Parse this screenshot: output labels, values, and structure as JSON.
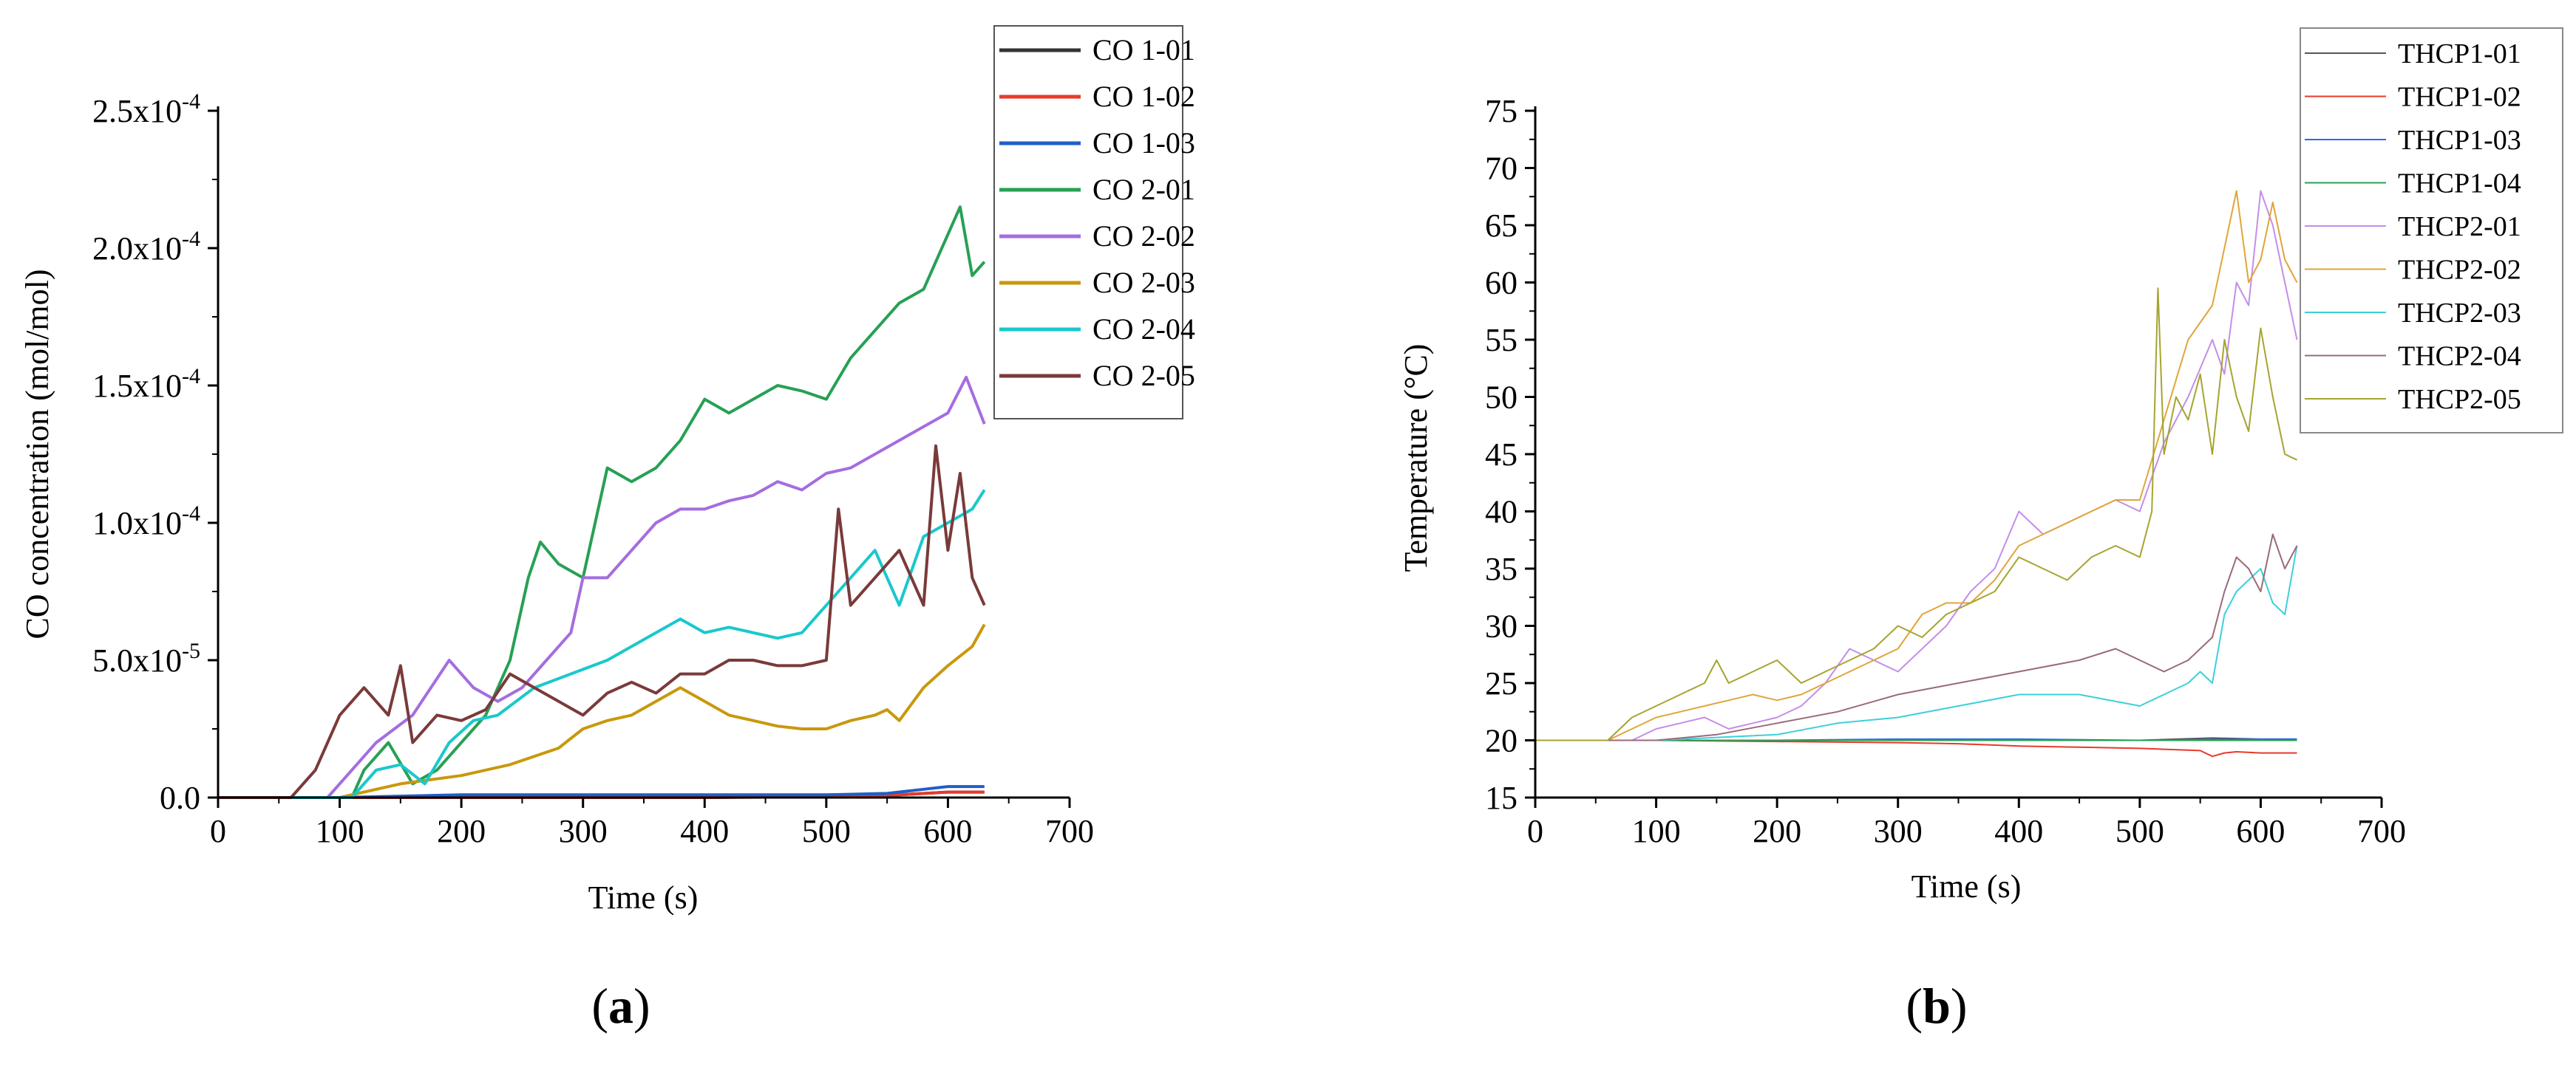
{
  "figure": {
    "panels": [
      {
        "label_open": "(",
        "label": "a",
        "label_close": ")"
      },
      {
        "label_open": "(",
        "label": "b",
        "label_close": ")"
      }
    ]
  },
  "chart_data": [
    {
      "type": "line",
      "title": "",
      "xlabel": "Time (s)",
      "ylabel": "CO concentration (mol/mol)",
      "xlim": [
        0,
        700
      ],
      "ylim": [
        0,
        0.00025
      ],
      "xticks": [
        0,
        100,
        200,
        300,
        400,
        500,
        600,
        700
      ],
      "xtick_labels": [
        "0",
        "100",
        "200",
        "300",
        "400",
        "500",
        "600",
        "700"
      ],
      "yticks": [
        0,
        5e-05,
        0.0001,
        0.00015,
        0.0002,
        0.00025
      ],
      "ytick_labels": [
        "0.0",
        "5.0x10",
        "1.0x10",
        "1.5x10",
        "2.0x10",
        "2.5x10"
      ],
      "ytick_exponents": [
        "",
        "-5",
        "-4",
        "-4",
        "-4",
        "-4"
      ],
      "grid": false,
      "legend_position": "top-right",
      "series": [
        {
          "name": "CO 1-01",
          "color": "#333333",
          "x": [
            0,
            100,
            200,
            300,
            400,
            500,
            560,
            600,
            630
          ],
          "y": [
            0,
            0,
            0,
            0,
            0,
            5e-07,
            1e-06,
            2e-06,
            2e-06
          ]
        },
        {
          "name": "CO 1-02",
          "color": "#e8392b",
          "x": [
            0,
            100,
            200,
            300,
            400,
            500,
            560,
            600,
            630
          ],
          "y": [
            0,
            0,
            0,
            0,
            0,
            3e-07,
            1e-06,
            2e-06,
            2e-06
          ]
        },
        {
          "name": "CO 1-03",
          "color": "#1f5fc7",
          "x": [
            0,
            100,
            150,
            200,
            300,
            400,
            500,
            550,
            580,
            600,
            630
          ],
          "y": [
            0,
            0,
            5e-07,
            1e-06,
            1e-06,
            1e-06,
            1e-06,
            1.5e-06,
            3e-06,
            4e-06,
            4e-06
          ]
        },
        {
          "name": "CO 2-01",
          "color": "#27a055",
          "x": [
            0,
            100,
            110,
            120,
            140,
            160,
            180,
            200,
            220,
            240,
            255,
            265,
            280,
            300,
            320,
            340,
            360,
            380,
            400,
            420,
            440,
            460,
            480,
            500,
            520,
            540,
            560,
            580,
            600,
            610,
            620,
            630
          ],
          "y": [
            0,
            0,
            0,
            1e-05,
            2e-05,
            5e-06,
            1e-05,
            2e-05,
            3e-05,
            5e-05,
            8e-05,
            9.3e-05,
            8.5e-05,
            8e-05,
            0.00012,
            0.000115,
            0.00012,
            0.00013,
            0.000145,
            0.00014,
            0.000145,
            0.00015,
            0.000148,
            0.000145,
            0.00016,
            0.00017,
            0.00018,
            0.000185,
            0.000205,
            0.000215,
            0.00019,
            0.000195
          ]
        },
        {
          "name": "CO 2-02",
          "color": "#a56de0",
          "x": [
            0,
            90,
            110,
            130,
            160,
            190,
            210,
            230,
            250,
            270,
            290,
            300,
            320,
            340,
            360,
            380,
            400,
            420,
            440,
            460,
            480,
            500,
            520,
            540,
            560,
            580,
            600,
            615,
            630
          ],
          "y": [
            0,
            0,
            1e-05,
            2e-05,
            3e-05,
            5e-05,
            4e-05,
            3.5e-05,
            4e-05,
            5e-05,
            6e-05,
            8e-05,
            8e-05,
            9e-05,
            0.0001,
            0.000105,
            0.000105,
            0.000108,
            0.00011,
            0.000115,
            0.000112,
            0.000118,
            0.00012,
            0.000125,
            0.00013,
            0.000135,
            0.00014,
            0.000153,
            0.000136
          ]
        },
        {
          "name": "CO 2-03",
          "color": "#c9980c",
          "x": [
            0,
            100,
            150,
            200,
            240,
            280,
            300,
            320,
            340,
            360,
            380,
            400,
            420,
            440,
            460,
            480,
            500,
            520,
            540,
            550,
            560,
            580,
            600,
            620,
            630
          ],
          "y": [
            0,
            0,
            5e-06,
            8e-06,
            1.2e-05,
            1.8e-05,
            2.5e-05,
            2.8e-05,
            3e-05,
            3.5e-05,
            4e-05,
            3.5e-05,
            3e-05,
            2.8e-05,
            2.6e-05,
            2.5e-05,
            2.5e-05,
            2.8e-05,
            3e-05,
            3.2e-05,
            2.8e-05,
            4e-05,
            4.8e-05,
            5.5e-05,
            6.3e-05
          ]
        },
        {
          "name": "CO 2-04",
          "color": "#19c8cc",
          "x": [
            0,
            110,
            130,
            150,
            170,
            190,
            210,
            230,
            260,
            290,
            320,
            340,
            360,
            380,
            400,
            420,
            440,
            460,
            480,
            500,
            520,
            540,
            560,
            580,
            600,
            620,
            630
          ],
          "y": [
            0,
            0,
            1e-05,
            1.2e-05,
            5e-06,
            2e-05,
            2.8e-05,
            3e-05,
            4e-05,
            4.5e-05,
            5e-05,
            5.5e-05,
            6e-05,
            6.5e-05,
            6e-05,
            6.2e-05,
            6e-05,
            5.8e-05,
            6e-05,
            7e-05,
            8e-05,
            9e-05,
            7e-05,
            9.5e-05,
            0.0001,
            0.000105,
            0.000112
          ]
        },
        {
          "name": "CO 2-05",
          "color": "#7a3a3a",
          "x": [
            0,
            60,
            80,
            100,
            120,
            140,
            150,
            160,
            180,
            200,
            220,
            240,
            260,
            280,
            300,
            320,
            340,
            360,
            380,
            400,
            420,
            440,
            460,
            480,
            500,
            510,
            520,
            540,
            560,
            580,
            590,
            600,
            610,
            620,
            630
          ],
          "y": [
            0,
            0,
            1e-05,
            3e-05,
            4e-05,
            3e-05,
            4.8e-05,
            2e-05,
            3e-05,
            2.8e-05,
            3.2e-05,
            4.5e-05,
            4e-05,
            3.5e-05,
            3e-05,
            3.8e-05,
            4.2e-05,
            3.8e-05,
            4.5e-05,
            4.5e-05,
            5e-05,
            5e-05,
            4.8e-05,
            4.8e-05,
            5e-05,
            0.000105,
            7e-05,
            8e-05,
            9e-05,
            7e-05,
            0.000128,
            9e-05,
            0.000118,
            8e-05,
            7e-05
          ]
        }
      ]
    },
    {
      "type": "line",
      "title": "",
      "xlabel": "Time (s)",
      "ylabel": "Temperature (°C)",
      "xlim": [
        0,
        700
      ],
      "ylim": [
        15,
        75
      ],
      "xticks": [
        0,
        100,
        200,
        300,
        400,
        500,
        600,
        700
      ],
      "xtick_labels": [
        "0",
        "100",
        "200",
        "300",
        "400",
        "500",
        "600",
        "700"
      ],
      "yticks": [
        15,
        20,
        25,
        30,
        35,
        40,
        45,
        50,
        55,
        60,
        65,
        70,
        75
      ],
      "ytick_labels": [
        "15",
        "20",
        "25",
        "30",
        "35",
        "40",
        "45",
        "50",
        "55",
        "60",
        "65",
        "70",
        "75"
      ],
      "grid": false,
      "legend_position": "top-right",
      "series": [
        {
          "name": "THCP1-01",
          "color": "#555555",
          "x": [
            0,
            100,
            200,
            300,
            400,
            500,
            560,
            600,
            630
          ],
          "y": [
            20,
            20,
            20,
            20,
            20,
            20,
            20.2,
            20.1,
            20.1
          ]
        },
        {
          "name": "THCP1-02",
          "color": "#e8392b",
          "x": [
            0,
            100,
            200,
            300,
            350,
            400,
            450,
            500,
            550,
            560,
            570,
            580,
            600,
            630
          ],
          "y": [
            20,
            20,
            19.9,
            19.8,
            19.7,
            19.5,
            19.4,
            19.3,
            19.1,
            18.6,
            18.9,
            19,
            18.9,
            18.9
          ]
        },
        {
          "name": "THCP1-03",
          "color": "#2d6be0",
          "x": [
            0,
            100,
            200,
            300,
            400,
            500,
            600,
            630
          ],
          "y": [
            20,
            20,
            20,
            20.1,
            20.1,
            20,
            20.1,
            20.1
          ]
        },
        {
          "name": "THCP1-04",
          "color": "#27a055",
          "x": [
            0,
            100,
            200,
            300,
            400,
            500,
            600,
            630
          ],
          "y": [
            20,
            20,
            20,
            20,
            20,
            20,
            20,
            20
          ]
        },
        {
          "name": "THCP2-01",
          "color": "#c48ee8",
          "x": [
            0,
            80,
            100,
            120,
            140,
            160,
            180,
            200,
            220,
            240,
            260,
            280,
            300,
            320,
            340,
            360,
            380,
            400,
            420,
            440,
            460,
            480,
            500,
            520,
            540,
            560,
            570,
            580,
            590,
            600,
            610,
            620,
            630
          ],
          "y": [
            20,
            20,
            21,
            21.5,
            22,
            21,
            21.5,
            22,
            23,
            25,
            28,
            27,
            26,
            28,
            30,
            33,
            35,
            40,
            38,
            39,
            40,
            41,
            40,
            46,
            50,
            55,
            52,
            60,
            58,
            68,
            65,
            60,
            55
          ]
        },
        {
          "name": "THCP2-02",
          "color": "#e0a53a",
          "x": [
            0,
            60,
            80,
            100,
            120,
            140,
            160,
            180,
            200,
            220,
            240,
            260,
            280,
            300,
            320,
            340,
            360,
            380,
            400,
            420,
            440,
            460,
            480,
            500,
            520,
            540,
            560,
            580,
            590,
            600,
            610,
            620,
            630
          ],
          "y": [
            20,
            20,
            21,
            22,
            22.5,
            23,
            23.5,
            24,
            23.5,
            24,
            25,
            26,
            27,
            28,
            31,
            32,
            32,
            34,
            37,
            38,
            39,
            40,
            41,
            41,
            48,
            55,
            58,
            68,
            60,
            62,
            67,
            62,
            60
          ]
        },
        {
          "name": "THCP2-03",
          "color": "#3cd0d8",
          "x": [
            0,
            100,
            200,
            250,
            300,
            350,
            400,
            450,
            500,
            520,
            540,
            550,
            560,
            570,
            580,
            590,
            600,
            610,
            620,
            630
          ],
          "y": [
            20,
            20,
            20.5,
            21.5,
            22,
            23,
            24,
            24,
            23,
            24,
            25,
            26,
            25,
            31,
            33,
            34,
            35,
            32,
            31,
            37
          ]
        },
        {
          "name": "THCP2-04",
          "color": "#9a6a7a",
          "x": [
            0,
            100,
            150,
            200,
            250,
            300,
            350,
            400,
            450,
            480,
            500,
            520,
            540,
            560,
            570,
            580,
            590,
            600,
            610,
            620,
            630
          ],
          "y": [
            20,
            20,
            20.5,
            21.5,
            22.5,
            24,
            25,
            26,
            27,
            28,
            27,
            26,
            27,
            29,
            33,
            36,
            35,
            33,
            38,
            35,
            37
          ]
        },
        {
          "name": "THCP2-05",
          "color": "#a6a430",
          "x": [
            0,
            60,
            80,
            100,
            120,
            140,
            150,
            160,
            180,
            200,
            220,
            240,
            260,
            280,
            300,
            320,
            340,
            360,
            380,
            400,
            420,
            440,
            460,
            480,
            500,
            510,
            515,
            520,
            530,
            540,
            550,
            560,
            570,
            580,
            590,
            600,
            610,
            620,
            630
          ],
          "y": [
            20,
            20,
            22,
            23,
            24,
            25,
            27,
            25,
            26,
            27,
            25,
            26,
            27,
            28,
            30,
            29,
            31,
            32,
            33,
            36,
            35,
            34,
            36,
            37,
            36,
            40,
            59.5,
            45,
            50,
            48,
            52,
            45,
            55,
            50,
            47,
            56,
            50,
            45,
            44.5
          ]
        }
      ]
    }
  ]
}
